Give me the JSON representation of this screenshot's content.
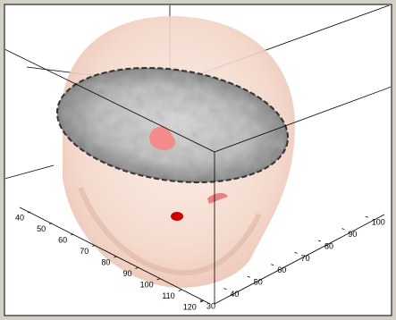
{
  "axes": {
    "left_ticks": [
      40,
      50,
      60,
      70,
      80,
      90,
      100,
      110,
      120
    ],
    "right_ticks": [
      30,
      40,
      50,
      60,
      70,
      80,
      90,
      100
    ]
  }
}
